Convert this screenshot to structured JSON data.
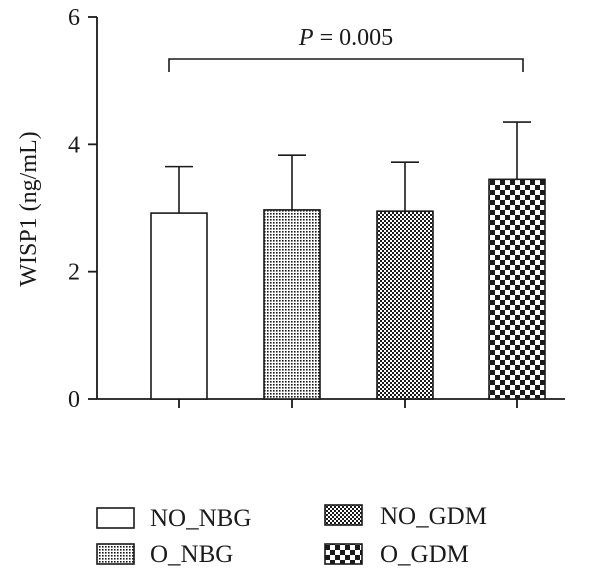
{
  "chart_data": {
    "type": "bar",
    "categories": [
      "NO_NBG",
      "O_NBG",
      "NO_GDM",
      "O_GDM"
    ],
    "values": [
      2.92,
      2.97,
      2.95,
      3.45
    ],
    "errors_upper": [
      3.65,
      3.83,
      3.72,
      4.35
    ],
    "patterns": [
      "none",
      "fine-dots",
      "checker",
      "coarse-checker"
    ],
    "ylabel": "WISP1 (ng/mL)",
    "ylim": [
      0,
      6
    ],
    "yticks": [
      "0",
      "2",
      "4",
      "6"
    ],
    "grid": false,
    "annotation": {
      "italic_part": "P",
      "rest": " = 0.005",
      "from_category": 0,
      "to_category": 3
    },
    "legend": {
      "position": "bottom",
      "items": [
        {
          "label": "NO_NBG",
          "pattern": "none"
        },
        {
          "label": "NO_GDM",
          "pattern": "checker"
        },
        {
          "label": "O_NBG",
          "pattern": "fine-dots"
        },
        {
          "label": "O_GDM",
          "pattern": "coarse-checker"
        }
      ]
    }
  },
  "colors": {
    "ink": "#1a1a1a",
    "background": "#ffffff"
  }
}
